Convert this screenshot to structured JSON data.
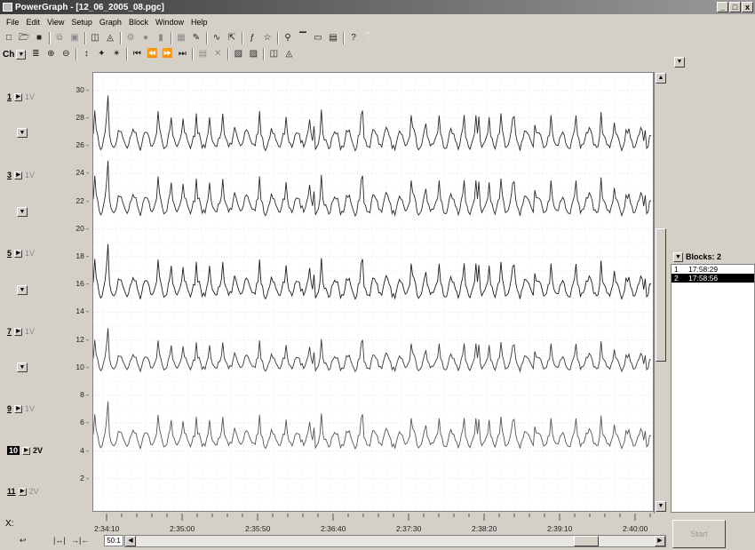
{
  "window": {
    "title": "PowerGraph - [12_06_2005_08.pgc]",
    "controls": [
      "_",
      "□",
      "x"
    ]
  },
  "menu": [
    "File",
    "Edit",
    "View",
    "Setup",
    "Graph",
    "Block",
    "Window",
    "Help"
  ],
  "toolbar2": {
    "channel_label": "Ch"
  },
  "channels": [
    {
      "num": "1",
      "range": "1V",
      "active": false,
      "selected": false
    },
    {
      "num": "3",
      "range": "1V",
      "active": false,
      "selected": false
    },
    {
      "num": "5",
      "range": "1V",
      "active": false,
      "selected": false
    },
    {
      "num": "7",
      "range": "1V",
      "active": false,
      "selected": false
    },
    {
      "num": "9",
      "range": "1V",
      "active": false,
      "selected": false
    },
    {
      "num": "10",
      "range": "2V",
      "active": true,
      "selected": true
    },
    {
      "num": "11",
      "range": "2V",
      "active": false,
      "selected": false
    }
  ],
  "y_ticks": [
    "30",
    "28",
    "26",
    "24",
    "22",
    "20",
    "18",
    "16",
    "14",
    "12",
    "10",
    "8",
    "6",
    "4",
    "2"
  ],
  "x_label": "X:",
  "x_ticks": [
    "2:34:10",
    "2:35:00",
    "2:35:50",
    "2:36:40",
    "2:37:30",
    "2:38:20",
    "2:39:10",
    "2:40:00"
  ],
  "zoom": "50:1",
  "blocks": {
    "header": "Blocks: 2",
    "items": [
      {
        "num": "1",
        "time": "17:58:29",
        "selected": false
      },
      {
        "num": "2",
        "time": "17:58:56",
        "selected": true
      }
    ]
  },
  "start_button": "Start",
  "chart_data": {
    "type": "line",
    "ylim": [
      0,
      31
    ],
    "x_ticks": [
      "2:34:10",
      "2:35:00",
      "2:35:50",
      "2:36:40",
      "2:37:30",
      "2:38:20",
      "2:39:10",
      "2:40:00"
    ],
    "series": [
      {
        "baseline": 26.5,
        "amplitude": 1.4
      },
      {
        "baseline": 21.8,
        "amplitude": 1.4
      },
      {
        "baseline": 15.8,
        "amplitude": 1.4
      },
      {
        "baseline": 10.4,
        "amplitude": 1.1
      },
      {
        "baseline": 4.9,
        "amplitude": 1.2
      }
    ],
    "grid": true
  }
}
